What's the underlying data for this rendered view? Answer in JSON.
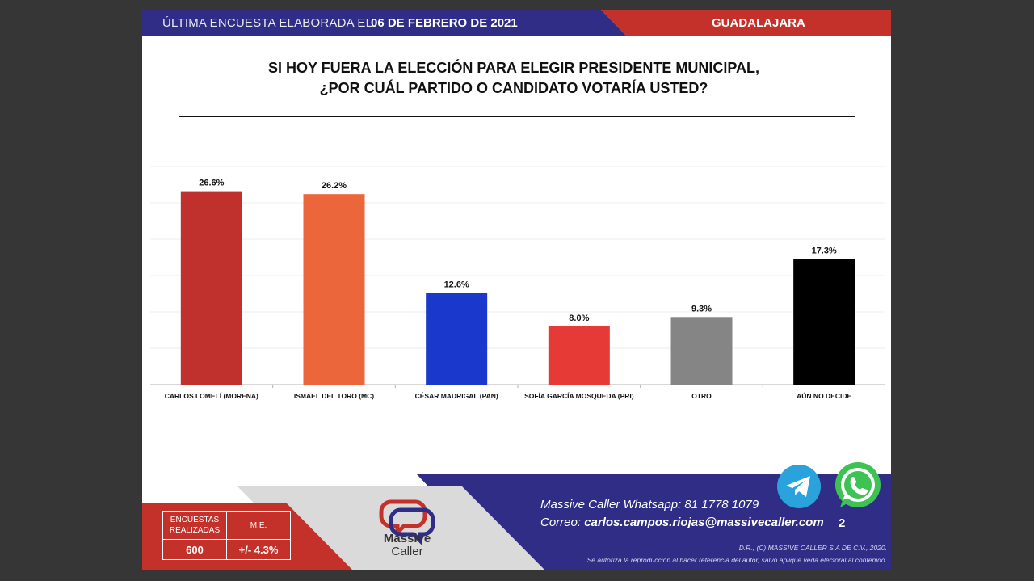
{
  "header": {
    "date_prefix": "ÚLTIMA ENCUESTA ELABORADA EL",
    "date": "06 DE FEBRERO DE 2021",
    "city": "GUADALAJARA",
    "colors": {
      "blue": "#2f2d86",
      "red": "#c4312a"
    }
  },
  "question": {
    "line1": "SI HOY FUERA LA ELECCIÓN PARA ELEGIR PRESIDENTE MUNICIPAL,",
    "line2": "¿POR CUÁL PARTIDO O CANDIDATO VOTARÍA USTED?"
  },
  "chart_data": {
    "type": "bar",
    "categories": [
      "CARLOS LOMELÍ (MORENA)",
      "ISMAEL DEL TORO (MC)",
      "CÉSAR MADRIGAL (PAN)",
      "SOFÍA GARCÍA MOSQUEDA (PRI)",
      "OTRO",
      "AÚN NO DECIDE"
    ],
    "values": [
      26.6,
      26.2,
      12.6,
      8.0,
      9.3,
      17.3
    ],
    "data_labels": [
      "26.6%",
      "26.2%",
      "12.6%",
      "8.0%",
      "9.3%",
      "17.3%"
    ],
    "colors": [
      "#c0312d",
      "#ec663b",
      "#1a39cc",
      "#e53a35",
      "#858585",
      "#000000"
    ],
    "ylim": [
      0,
      30
    ],
    "grid": true,
    "legend": false
  },
  "footer": {
    "surveys_label": "ENCUESTAS REALIZADAS",
    "surveys_value": "600",
    "margin_label": "M.E.",
    "margin_value": "+/- 4.3%",
    "logo_line1": "Massive",
    "logo_line2": "Caller",
    "whatsapp_label": "Massive Caller Whatsapp:",
    "whatsapp_number": "81 1778 1079",
    "email_label": "Correo:",
    "email": "carlos.campos.riojas@massivecaller.com",
    "page_number": "2",
    "copyright": "D.R., (C) MASSIVE CALLER S.A DE C.V., 2020.",
    "disclaimer": "Se autoriza la reproducción al hacer referencia del autor, salvo aplique veda electoral al contenido."
  }
}
